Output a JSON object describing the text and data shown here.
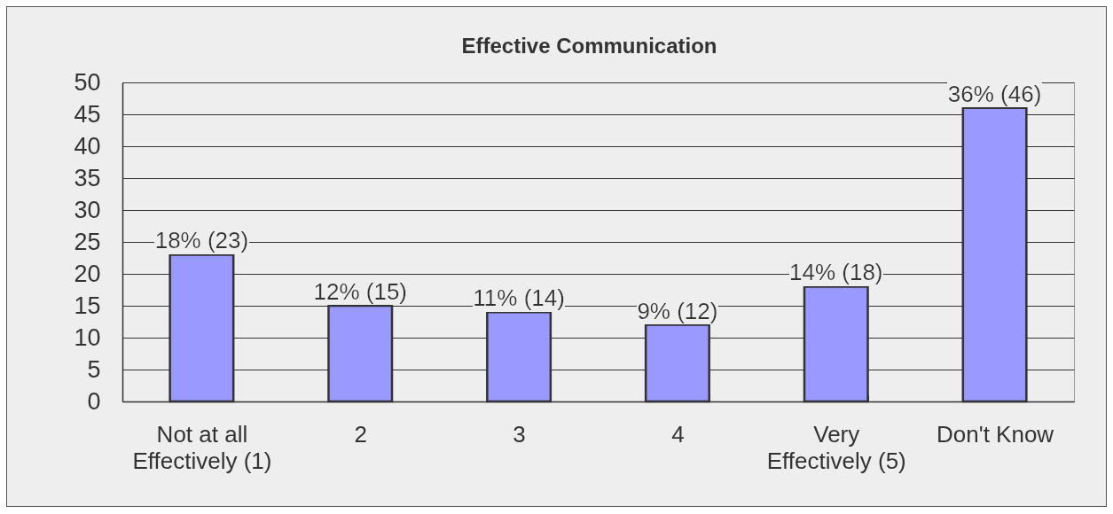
{
  "chart_data": {
    "type": "bar",
    "title": "Effective Communication",
    "categories": [
      "Not at all Effectively (1)",
      "2",
      "3",
      "4",
      "Very Effectively (5)",
      "Don't Know"
    ],
    "values": [
      23,
      15,
      14,
      12,
      18,
      46
    ],
    "value_labels": [
      "18% (23)",
      "12% (15)",
      "11% (14)",
      "9% (12)",
      "14% (18)",
      "36% (46)"
    ],
    "color": "#9999ff",
    "ylim": [
      0,
      50
    ],
    "yticks": [
      0,
      5,
      10,
      15,
      20,
      25,
      30,
      35,
      40,
      45,
      50
    ],
    "grid": "y"
  }
}
